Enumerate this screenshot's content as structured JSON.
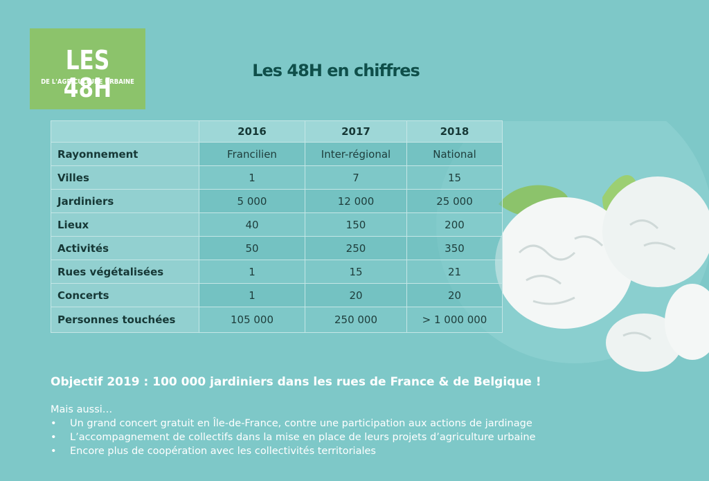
{
  "logo": {
    "main": "LES 48H",
    "sub": "DE L'AGRICULTURE URBAINE"
  },
  "title": "Les 48H en chiffres",
  "table": {
    "headers": [
      "",
      "2016",
      "2017",
      "2018"
    ],
    "rows": [
      {
        "label": "Rayonnement",
        "values": [
          "Francilien",
          "Inter-régional",
          "National"
        ]
      },
      {
        "label": "Villes",
        "values": [
          "1",
          "7",
          "15"
        ]
      },
      {
        "label": "Jardiniers",
        "values": [
          "5 000",
          "12 000",
          "25 000"
        ]
      },
      {
        "label": "Lieux",
        "values": [
          "40",
          "150",
          "200"
        ]
      },
      {
        "label": "Activités",
        "values": [
          "50",
          "250",
          "350"
        ]
      },
      {
        "label": "Rues végétalisées",
        "values": [
          "1",
          "15",
          "21"
        ]
      },
      {
        "label": "Concerts",
        "values": [
          "1",
          "20",
          "20"
        ]
      },
      {
        "label": "Personnes touchées",
        "values": [
          "105 000",
          "250 000",
          "> 1 000 000"
        ]
      }
    ]
  },
  "objective": "Objectif 2019 : 100 000 jardiniers dans les rues de France & de Belgique !",
  "also_intro": "Mais aussi…",
  "bullet_symbol": "•",
  "bullets": [
    "Un grand concert gratuit en Île-de-France, contre une participation aux actions de jardinage",
    "L’accompagnement de collectifs dans la mise en place de leurs projets d’agriculture urbaine",
    "Encore plus de coopération avec les collectivités territoriales"
  ],
  "colors": {
    "background": "#7ec8c8",
    "logo": "#8cc36b",
    "title": "#0f4f4a",
    "leaf": "#8cc36b"
  }
}
